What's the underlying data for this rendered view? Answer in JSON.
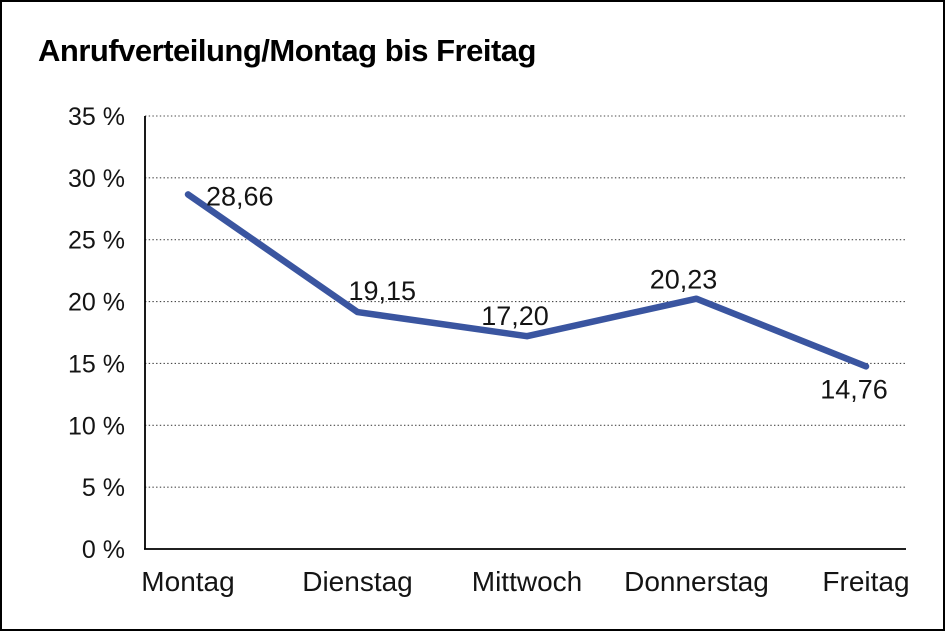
{
  "chart_data": {
    "type": "line",
    "title": "Anrufverteilung/Montag bis Freitag",
    "categories": [
      "Montag",
      "Dienstag",
      "Mittwoch",
      "Donnerstag",
      "Freitag"
    ],
    "series": [
      {
        "name": "Anrufverteilung",
        "values": [
          28.66,
          19.15,
          17.2,
          20.23,
          14.76
        ],
        "point_labels": [
          "28,66",
          "19,15",
          "17,20",
          "20,23",
          "14,76"
        ]
      }
    ],
    "xlabel": "",
    "ylabel": "",
    "ylim": [
      0,
      35
    ],
    "ytick_step": 5,
    "yticks": [
      0,
      5,
      10,
      15,
      20,
      25,
      30,
      35
    ],
    "ytick_labels": [
      "0 %",
      "5 %",
      "10 %",
      "15 %",
      "20 %",
      "25 %",
      "30 %",
      "35 %"
    ],
    "grid": "horizontal-dotted",
    "legend_position": "none",
    "line_color": "#3A55A0",
    "line_width": 6.5,
    "text_color": "#141414",
    "axis_color": "#000000",
    "background_color": "#ffffff",
    "border_color": "#000000"
  }
}
